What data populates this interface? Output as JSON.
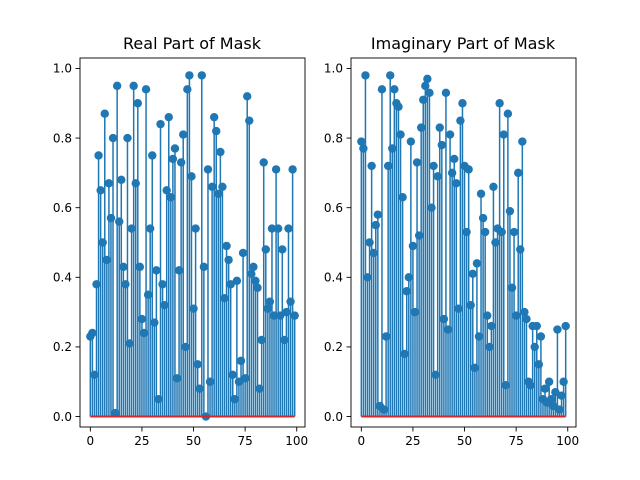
{
  "chart_data": [
    {
      "type": "stem",
      "title": "Real Part of Mask",
      "xlim": [
        -5,
        104
      ],
      "ylim": [
        -0.03,
        1.03
      ],
      "xticks": [
        0,
        25,
        50,
        75,
        100
      ],
      "yticks": [
        0.0,
        0.2,
        0.4,
        0.6,
        0.8,
        1.0
      ],
      "ytick_labels": [
        "0.0",
        "0.2",
        "0.4",
        "0.6",
        "0.8",
        "1.0"
      ],
      "color": "#1f77b4",
      "baseline_color": "#d62728",
      "x": [
        0,
        1,
        2,
        3,
        4,
        5,
        6,
        7,
        8,
        9,
        10,
        11,
        12,
        13,
        14,
        15,
        16,
        17,
        18,
        19,
        20,
        21,
        22,
        23,
        24,
        25,
        26,
        27,
        28,
        29,
        30,
        31,
        32,
        33,
        34,
        35,
        36,
        37,
        38,
        39,
        40,
        41,
        42,
        43,
        44,
        45,
        46,
        47,
        48,
        49,
        50,
        51,
        52,
        53,
        54,
        55,
        56,
        57,
        58,
        59,
        60,
        61,
        62,
        63,
        64,
        65,
        66,
        67,
        68,
        69,
        70,
        71,
        72,
        73,
        74,
        75,
        76,
        77,
        78,
        79,
        80,
        81,
        82,
        83,
        84,
        85,
        86,
        87,
        88,
        89,
        90,
        91,
        92,
        93,
        94,
        95,
        96,
        97,
        98,
        99
      ],
      "values": [
        0.23,
        0.24,
        0.12,
        0.38,
        0.75,
        0.65,
        0.5,
        0.87,
        0.45,
        0.67,
        0.57,
        0.8,
        0.01,
        0.95,
        0.56,
        0.68,
        0.43,
        0.38,
        0.8,
        0.21,
        0.54,
        0.95,
        0.67,
        0.9,
        0.43,
        0.28,
        0.24,
        0.94,
        0.35,
        0.54,
        0.75,
        0.27,
        0.42,
        0.05,
        0.84,
        0.38,
        0.32,
        0.65,
        0.86,
        0.63,
        0.74,
        0.77,
        0.11,
        0.42,
        0.73,
        0.81,
        0.2,
        0.94,
        0.98,
        0.69,
        0.31,
        0.54,
        0.15,
        0.08,
        0.98,
        0.43,
        0.0,
        0.71,
        0.1,
        0.66,
        0.86,
        0.82,
        0.64,
        0.76,
        0.66,
        0.34,
        0.49,
        0.45,
        0.38,
        0.12,
        0.05,
        0.39,
        0.1,
        0.16,
        0.47,
        0.11,
        0.92,
        0.85,
        0.41,
        0.43,
        0.39,
        0.37,
        0.08,
        0.22,
        0.73,
        0.48,
        0.31,
        0.33,
        0.54,
        0.29,
        0.71,
        0.54,
        0.29,
        0.48,
        0.22,
        0.3,
        0.54,
        0.33,
        0.71,
        0.29
      ]
    },
    {
      "type": "stem",
      "title": "Imaginary Part of Mask",
      "xlim": [
        -5,
        104
      ],
      "ylim": [
        -0.03,
        1.03
      ],
      "xticks": [
        0,
        25,
        50,
        75,
        100
      ],
      "yticks": [
        0.0,
        0.2,
        0.4,
        0.6,
        0.8,
        1.0
      ],
      "ytick_labels": [
        "0.0",
        "0.2",
        "0.4",
        "0.6",
        "0.8",
        "1.0"
      ],
      "color": "#1f77b4",
      "baseline_color": "#d62728",
      "x": [
        0,
        1,
        2,
        3,
        4,
        5,
        6,
        7,
        8,
        9,
        10,
        11,
        12,
        13,
        14,
        15,
        16,
        17,
        18,
        19,
        20,
        21,
        22,
        23,
        24,
        25,
        26,
        27,
        28,
        29,
        30,
        31,
        32,
        33,
        34,
        35,
        36,
        37,
        38,
        39,
        40,
        41,
        42,
        43,
        44,
        45,
        46,
        47,
        48,
        49,
        50,
        51,
        52,
        53,
        54,
        55,
        56,
        57,
        58,
        59,
        60,
        61,
        62,
        63,
        64,
        65,
        66,
        67,
        68,
        69,
        70,
        71,
        72,
        73,
        74,
        75,
        76,
        77,
        78,
        79,
        80,
        81,
        82,
        83,
        84,
        85,
        86,
        87,
        88,
        89,
        90,
        91,
        92,
        93,
        94,
        95,
        96,
        97,
        98,
        99
      ],
      "values": [
        0.79,
        0.77,
        0.98,
        0.4,
        0.5,
        0.72,
        0.47,
        0.55,
        0.58,
        0.03,
        0.94,
        0.02,
        0.23,
        0.72,
        0.98,
        0.77,
        0.94,
        0.9,
        0.89,
        0.81,
        0.63,
        0.18,
        0.36,
        0.4,
        0.79,
        0.49,
        0.3,
        0.73,
        0.52,
        0.83,
        0.91,
        0.95,
        0.97,
        0.93,
        0.6,
        0.72,
        0.12,
        0.69,
        0.83,
        0.78,
        0.28,
        0.93,
        0.25,
        0.81,
        0.7,
        0.74,
        0.67,
        0.31,
        0.85,
        0.9,
        0.72,
        0.53,
        0.71,
        0.32,
        0.41,
        0.14,
        0.44,
        0.23,
        0.64,
        0.57,
        0.53,
        0.29,
        0.2,
        0.26,
        0.66,
        0.5,
        0.54,
        0.9,
        0.53,
        0.81,
        0.09,
        0.87,
        0.59,
        0.37,
        0.53,
        0.29,
        0.7,
        0.48,
        0.79,
        0.3,
        0.28,
        0.1,
        0.09,
        0.26,
        0.2,
        0.26,
        0.15,
        0.23,
        0.05,
        0.08,
        0.04,
        0.1,
        0.05,
        0.03,
        0.07,
        0.25,
        0.02,
        0.06,
        0.1,
        0.26
      ]
    }
  ]
}
